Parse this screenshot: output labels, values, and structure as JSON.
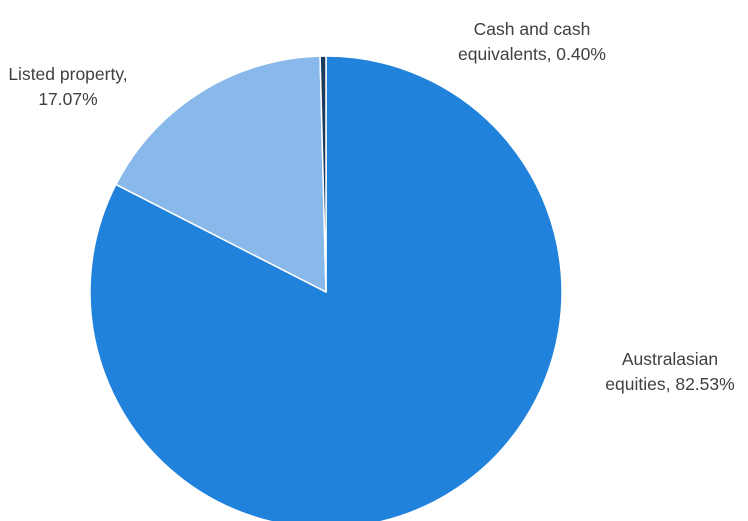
{
  "chart_data": {
    "type": "pie",
    "title": "",
    "slices": [
      {
        "name": "Australasian equities",
        "value": 82.53,
        "label": [
          "Australasian",
          "equities, 82.53%"
        ],
        "color": "#2182DC"
      },
      {
        "name": "Listed property",
        "value": 17.07,
        "label": [
          "Listed property,",
          "17.07%"
        ],
        "color": "#88B9EA"
      },
      {
        "name": "Cash and cash equivalents",
        "value": 0.4,
        "label": [
          "Cash and cash",
          "equivalents, 0.40%"
        ],
        "color": "#1B3A5C"
      }
    ],
    "start_angle_deg": 0,
    "direction": "clockwise",
    "legend": "none"
  }
}
